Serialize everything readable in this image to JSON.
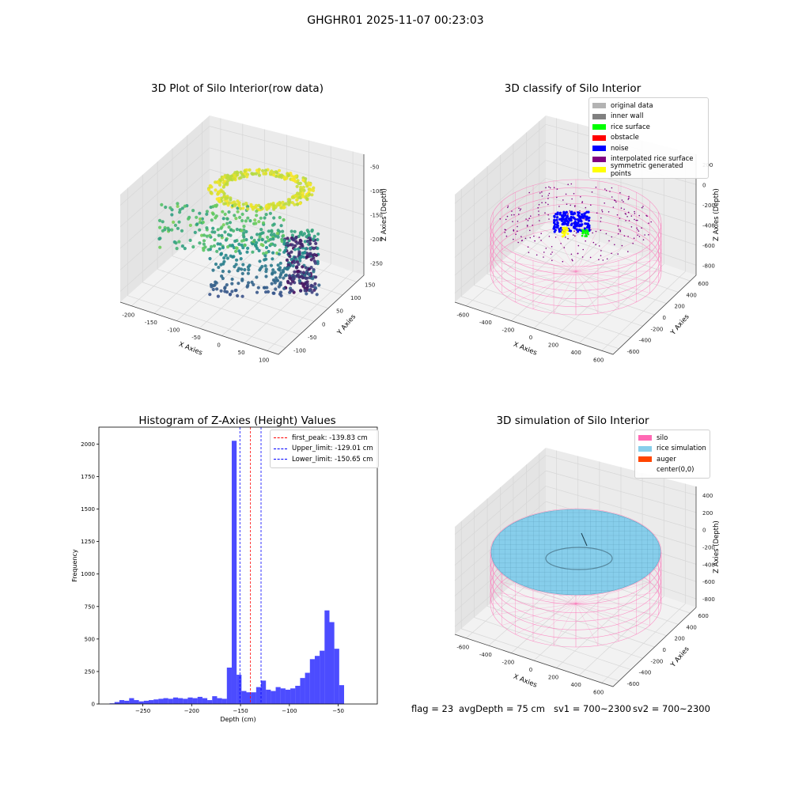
{
  "figure": {
    "suptitle": "GHGHR01 2025-11-07 00:23:03"
  },
  "chart_data": [
    {
      "type": "scatter",
      "panel": "top-left",
      "title": "3D Plot of Silo Interior(row data)",
      "xlabel": "X Axies",
      "ylabel": "Y Axies",
      "zlabel": "Z Axies (Depth)",
      "x_ticks": [
        "-200",
        "-150",
        "-100",
        "-50",
        "0",
        "50",
        "100"
      ],
      "y_ticks": [
        "-100",
        "-50",
        "0",
        "50",
        "100",
        "150"
      ],
      "z_ticks": [
        "-50",
        "-100",
        "-150",
        "-200",
        "-250"
      ],
      "xlim": [
        -220,
        120
      ],
      "ylim": [
        -120,
        160
      ],
      "zlim": [
        -290,
        -30
      ],
      "colormap": "viridis",
      "grid": true
    },
    {
      "type": "scatter",
      "panel": "top-right",
      "title": "3D classify of Silo Interior",
      "xlabel": "X Axies",
      "ylabel": "Y Axies",
      "zlabel": "Z Axies (Depth)",
      "x_ticks": [
        "-600",
        "-400",
        "-200",
        "0",
        "200",
        "400",
        "600"
      ],
      "y_ticks": [
        "-600",
        "-400",
        "-200",
        "0",
        "200",
        "400",
        "600"
      ],
      "z_ticks": [
        "200",
        "0",
        "-200",
        "-400",
        "-600",
        "-800"
      ],
      "legend_position": "top-right",
      "legend": [
        {
          "label": "original data",
          "color": "#b3b3b3"
        },
        {
          "label": "inner wall",
          "color": "#808080"
        },
        {
          "label": "rice surface",
          "color": "#00ff00"
        },
        {
          "label": "obstacle",
          "color": "#ff0000"
        },
        {
          "label": "noise",
          "color": "#0000ff"
        },
        {
          "label": "interpolated rice surface",
          "color": "#800080"
        },
        {
          "label": "symmetric generated points",
          "color": "#ffff00"
        }
      ],
      "grid": true
    },
    {
      "type": "bar",
      "panel": "bottom-left",
      "title": "Histogram of Z-Axies (Height) Values",
      "xlabel": "Depth (cm)",
      "ylabel": "Frequency",
      "xlim": [
        -295,
        -10
      ],
      "ylim": [
        0,
        2130
      ],
      "x_ticks": [
        -250,
        -200,
        -150,
        -100,
        -50
      ],
      "y_ticks": [
        0,
        250,
        500,
        750,
        1000,
        1250,
        1500,
        1750,
        2000
      ],
      "bin_start": -284,
      "bin_width": 5.0,
      "values": [
        5,
        15,
        30,
        25,
        45,
        30,
        20,
        25,
        30,
        35,
        40,
        45,
        40,
        50,
        45,
        40,
        50,
        45,
        55,
        45,
        30,
        60,
        45,
        40,
        280,
        2025,
        225,
        100,
        90,
        90,
        130,
        180,
        110,
        100,
        130,
        120,
        110,
        120,
        140,
        200,
        240,
        345,
        370,
        410,
        720,
        630,
        425,
        145
      ],
      "bar_color": "#0000ff",
      "vlines": [
        {
          "label": "first_peak: -139.83 cm",
          "x": -139.83,
          "color": "#ff0000"
        },
        {
          "label": "Upper_limit: -129.01 cm",
          "x": -129.01,
          "color": "#0000ff"
        },
        {
          "label": "Lower_limit: -150.65 cm",
          "x": -150.65,
          "color": "#0000ff"
        }
      ],
      "legend_position": "top-right",
      "grid": false
    },
    {
      "type": "scatter",
      "panel": "bottom-right",
      "title": "3D simulation of Silo Interior",
      "xlabel": "X Axies",
      "ylabel": "Y Axies",
      "zlabel": "Z Axies (Depth)",
      "x_ticks": [
        "-600",
        "-400",
        "-200",
        "0",
        "200",
        "400",
        "600"
      ],
      "y_ticks": [
        "-600",
        "-400",
        "-200",
        "0",
        "200",
        "400",
        "600"
      ],
      "z_ticks": [
        "400",
        "200",
        "0",
        "-200",
        "-400",
        "-600",
        "-800"
      ],
      "legend_position": "top-right",
      "legend": [
        {
          "label": "silo",
          "color": "#ff69b4"
        },
        {
          "label": "rice simulation",
          "color": "#87ceeb"
        },
        {
          "label": "auger",
          "color": "#ff4500"
        },
        {
          "label": "center(0,0)",
          "color": "#ffffff"
        }
      ],
      "grid": true
    }
  ],
  "footer": {
    "flag": "flag = 23",
    "avg_depth": "avgDepth = 75 cm",
    "sv1": "sv1 = 700~2300",
    "sv2": "sv2 = 700~2300"
  }
}
